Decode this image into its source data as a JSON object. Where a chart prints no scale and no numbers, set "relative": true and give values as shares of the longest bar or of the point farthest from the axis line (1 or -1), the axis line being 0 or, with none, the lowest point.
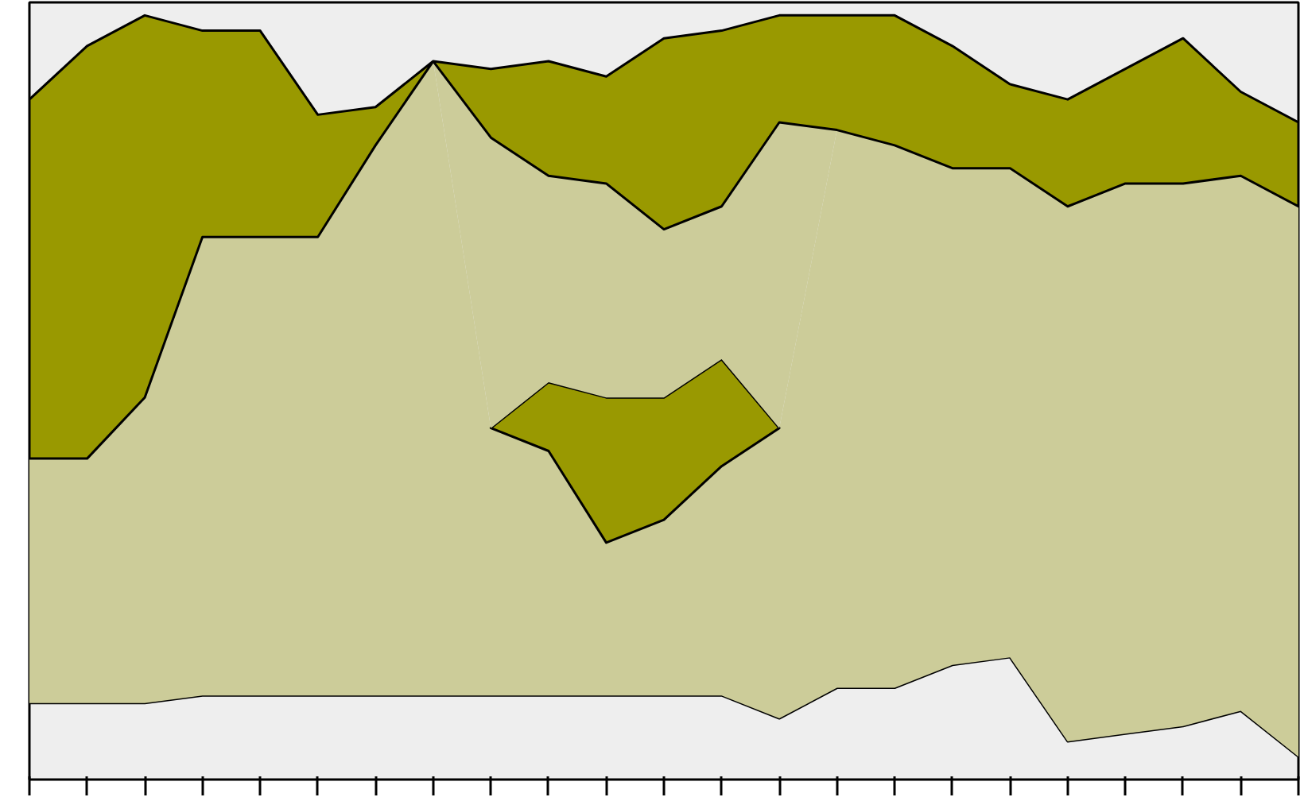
{
  "chart_data": {
    "type": "area",
    "stacked": true,
    "relative": true,
    "grid": false,
    "categories": [
      null,
      null,
      null,
      null,
      null,
      null,
      null,
      null,
      null,
      null,
      null,
      null,
      null,
      null,
      null,
      null,
      null,
      null,
      null,
      null,
      null,
      null,
      null
    ],
    "series": [
      {
        "color": "#eeeeee",
        "values": [
          0.1,
          0.1,
          0.1,
          0.11,
          0.11,
          0.11,
          0.11,
          0.11,
          0.11,
          0.11,
          0.11,
          0.11,
          0.11,
          0.08,
          0.12,
          0.12,
          0.15,
          0.16,
          0.05,
          0.06,
          0.07,
          0.09,
          0.03
        ]
      },
      {
        "color": "#cccc99",
        "values": [
          0.32,
          0.32,
          0.4,
          0.6,
          0.6,
          0.6,
          0.72,
          0.83,
          0.35,
          0.32,
          0.2,
          0.23,
          0.3,
          0.38,
          0.73,
          0.71,
          0.65,
          0.64,
          0.7,
          0.72,
          0.71,
          0.7,
          0.72
        ]
      },
      {
        "color": "#999901",
        "values": [
          null,
          null,
          null,
          null,
          null,
          null,
          null,
          null,
          0,
          0.09,
          0.19,
          0.16,
          0.14,
          0,
          null,
          null,
          null,
          null,
          null,
          null,
          null,
          null,
          null
        ]
      },
      {
        "color": "#cccc9a",
        "values": [
          0,
          0,
          0,
          0,
          0,
          0,
          0,
          0,
          0.38,
          0.27,
          0.28,
          0.22,
          0.2,
          0.4,
          0,
          0,
          0,
          0,
          0,
          0,
          0,
          0,
          0
        ]
      },
      {
        "color": "#999900",
        "values": [
          0.47,
          0.54,
          0.5,
          0.27,
          0.27,
          0.16,
          0.05,
          0,
          0.09,
          0.15,
          0.14,
          0.25,
          0.23,
          0.14,
          0.15,
          0.17,
          0.16,
          0.11,
          0.14,
          0.15,
          0.19,
          0.11,
          0.11
        ]
      }
    ]
  }
}
